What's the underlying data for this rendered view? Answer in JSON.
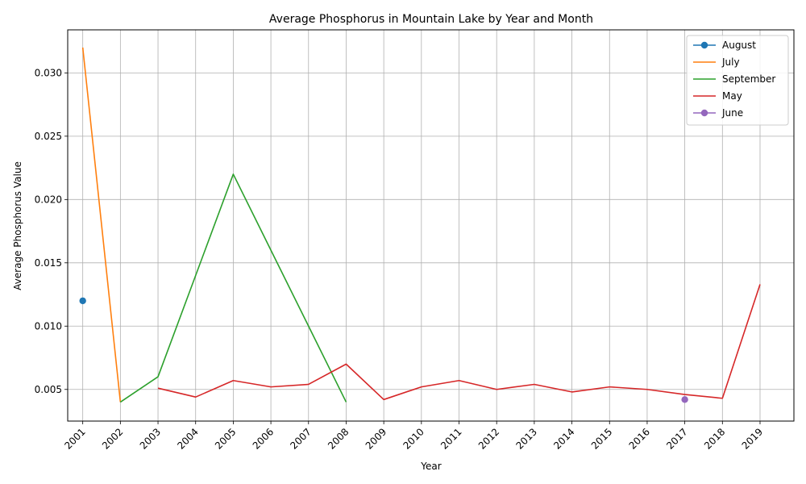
{
  "chart_data": {
    "type": "line",
    "title": "Average Phosphorus in Mountain Lake by Year and Month",
    "xlabel": "Year",
    "ylabel": "Average Phosphorus Value",
    "x_ticks": [
      "2001",
      "2002",
      "2003",
      "2004",
      "2005",
      "2006",
      "2007",
      "2008",
      "2009",
      "2010",
      "2011",
      "2012",
      "2013",
      "2014",
      "2015",
      "2016",
      "2017",
      "2018",
      "2019"
    ],
    "xlim": [
      2000.6,
      2019.9
    ],
    "ylim": [
      0.0025,
      0.0334
    ],
    "y_ticks": [
      0.005,
      0.01,
      0.015,
      0.02,
      0.025,
      0.03
    ],
    "y_tick_labels": [
      "0.005",
      "0.010",
      "0.015",
      "0.020",
      "0.025",
      "0.030"
    ],
    "grid": true,
    "legend_position": "upper right",
    "series": [
      {
        "name": "August",
        "color": "#1f77b4",
        "marker": true,
        "x": [
          2001
        ],
        "y": [
          0.012
        ]
      },
      {
        "name": "July",
        "color": "#ff7f0e",
        "marker": false,
        "x": [
          2001,
          2002
        ],
        "y": [
          0.032,
          0.004
        ]
      },
      {
        "name": "September",
        "color": "#2ca02c",
        "marker": false,
        "x": [
          2002,
          2003,
          2005,
          2006,
          2007,
          2008
        ],
        "y": [
          0.004,
          0.006,
          0.022,
          0.016,
          0.01,
          0.004
        ]
      },
      {
        "name": "May",
        "color": "#d62728",
        "marker": false,
        "x": [
          2003,
          2004,
          2005,
          2006,
          2007,
          2008,
          2009,
          2010,
          2011,
          2012,
          2013,
          2014,
          2015,
          2016,
          2017,
          2018,
          2019
        ],
        "y": [
          0.0051,
          0.0044,
          0.0057,
          0.0052,
          0.0054,
          0.007,
          0.0042,
          0.0052,
          0.0057,
          0.005,
          0.0054,
          0.0048,
          0.0052,
          0.005,
          0.0046,
          0.0043,
          0.0133
        ]
      },
      {
        "name": "June",
        "color": "#9467bd",
        "marker": true,
        "x": [
          2017
        ],
        "y": [
          0.0042
        ]
      }
    ]
  }
}
